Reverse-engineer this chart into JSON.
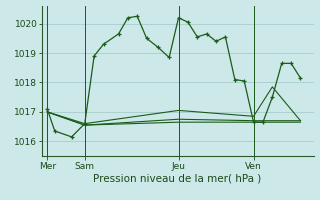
{
  "background_color": "#cce8e8",
  "grid_color": "#aacccc",
  "line_color": "#1a5c1a",
  "title": "Pression niveau de la mer( hPa )",
  "ylim": [
    1015.5,
    1020.6
  ],
  "yticks": [
    1016,
    1017,
    1018,
    1019,
    1020
  ],
  "day_labels": [
    "Mer",
    "Sam",
    "Jeu",
    "Ven"
  ],
  "day_positions": [
    0,
    2,
    7,
    11
  ],
  "xlim": [
    -0.3,
    14.2
  ],
  "series_main": {
    "x": [
      0,
      0.4,
      1.3,
      2.0,
      2.5,
      3.0,
      3.8,
      4.3,
      4.8,
      5.3,
      5.9,
      6.5,
      7.0,
      7.5,
      8.0,
      8.5,
      9.0,
      9.5,
      10.0,
      10.5,
      11.0,
      11.5,
      12.0,
      12.5,
      13.0,
      13.5
    ],
    "y": [
      1017.1,
      1016.35,
      1016.15,
      1016.6,
      1018.9,
      1019.3,
      1019.65,
      1020.2,
      1020.25,
      1019.5,
      1019.2,
      1018.85,
      1020.2,
      1020.05,
      1019.55,
      1019.65,
      1019.4,
      1019.55,
      1018.1,
      1018.05,
      1016.65,
      1016.65,
      1017.5,
      1018.65,
      1018.65,
      1018.15
    ]
  },
  "series_others": [
    {
      "x": [
        0,
        2.0,
        7.0,
        11.0,
        13.5
      ],
      "y": [
        1017.0,
        1016.55,
        1016.65,
        1016.65,
        1016.65
      ]
    },
    {
      "x": [
        0,
        2.0,
        7.0,
        11.0,
        13.5
      ],
      "y": [
        1017.0,
        1016.55,
        1016.75,
        1016.7,
        1016.7
      ]
    },
    {
      "x": [
        0,
        2.0,
        7.0,
        11.0,
        12.0,
        13.5
      ],
      "y": [
        1017.0,
        1016.6,
        1017.05,
        1016.85,
        1017.85,
        1016.7
      ]
    }
  ],
  "vline_positions": [
    0,
    2,
    7,
    11
  ],
  "title_fontsize": 7.5,
  "tick_fontsize": 6.5
}
